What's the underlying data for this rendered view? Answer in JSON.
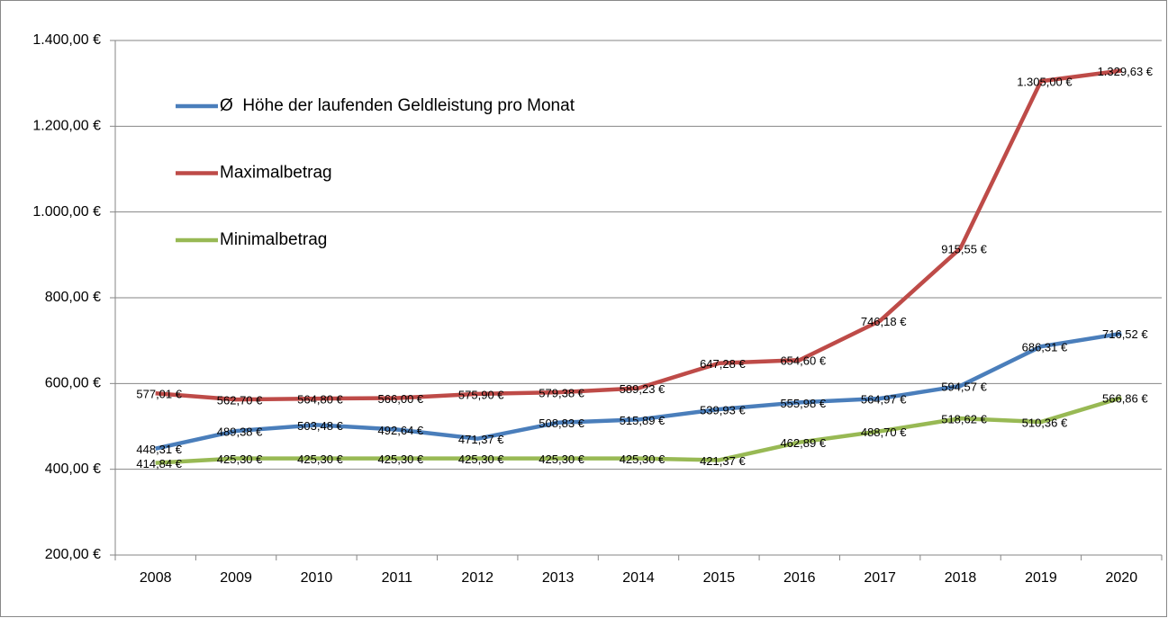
{
  "chart_data": {
    "type": "line",
    "categories": [
      "2008",
      "2009",
      "2010",
      "2011",
      "2012",
      "2013",
      "2014",
      "2015",
      "2016",
      "2017",
      "2018",
      "2019",
      "2020"
    ],
    "series": [
      {
        "name": "Ø  Höhe der laufenden Geldleistung pro Monat",
        "color": "#4a7ebb",
        "values": [
          448.31,
          489.38,
          503.48,
          492.64,
          471.37,
          508.83,
          515.89,
          539.93,
          555.98,
          564.97,
          594.57,
          686.31,
          716.52
        ],
        "value_labels": [
          "448,31 €",
          "489,38 €",
          "503,48 €",
          "492,64 €",
          "471,37 €",
          "508,83 €",
          "515,89 €",
          "539,93 €",
          "555,98 €",
          "564,97 €",
          "594,57 €",
          "686,31 €",
          "716,52 €"
        ]
      },
      {
        "name": "Maximalbetrag",
        "color": "#be4b48",
        "values": [
          577.01,
          562.7,
          564.8,
          566.0,
          575.9,
          579.38,
          589.23,
          647.28,
          654.6,
          746.18,
          915.55,
          1305.0,
          1329.63
        ],
        "value_labels": [
          "577,01 €",
          "562,70 €",
          "564,80 €",
          "566,00 €",
          "575,90 €",
          "579,38 €",
          "589,23 €",
          "647,28 €",
          "654,60 €",
          "746,18 €",
          "915,55 €",
          "1.305,00 €",
          "1.329,63 €"
        ]
      },
      {
        "name": "Minimalbetrag",
        "color": "#98b954",
        "values": [
          414.84,
          425.3,
          425.3,
          425.3,
          425.3,
          425.3,
          425.3,
          421.37,
          462.89,
          488.7,
          518.62,
          510.36,
          566.86
        ],
        "value_labels": [
          "414,84 €",
          "425,30 €",
          "425,30 €",
          "425,30 €",
          "425,30 €",
          "425,30 €",
          "425,30 €",
          "421,37 €",
          "462,89 €",
          "488,70 €",
          "518,62 €",
          "510,36 €",
          "566,86 €"
        ]
      }
    ],
    "ylim": [
      200,
      1400
    ],
    "yticks": [
      {
        "value": 200,
        "label": "200,00 €"
      },
      {
        "value": 400,
        "label": "400,00 €"
      },
      {
        "value": 600,
        "label": "600,00 €"
      },
      {
        "value": 800,
        "label": "800,00 €"
      },
      {
        "value": 1000,
        "label": "1.000,00 €"
      },
      {
        "value": 1200,
        "label": "1.200,00 €"
      },
      {
        "value": 1400,
        "label": "1.400,00 €"
      }
    ],
    "grid": true,
    "legend": "upper left"
  }
}
